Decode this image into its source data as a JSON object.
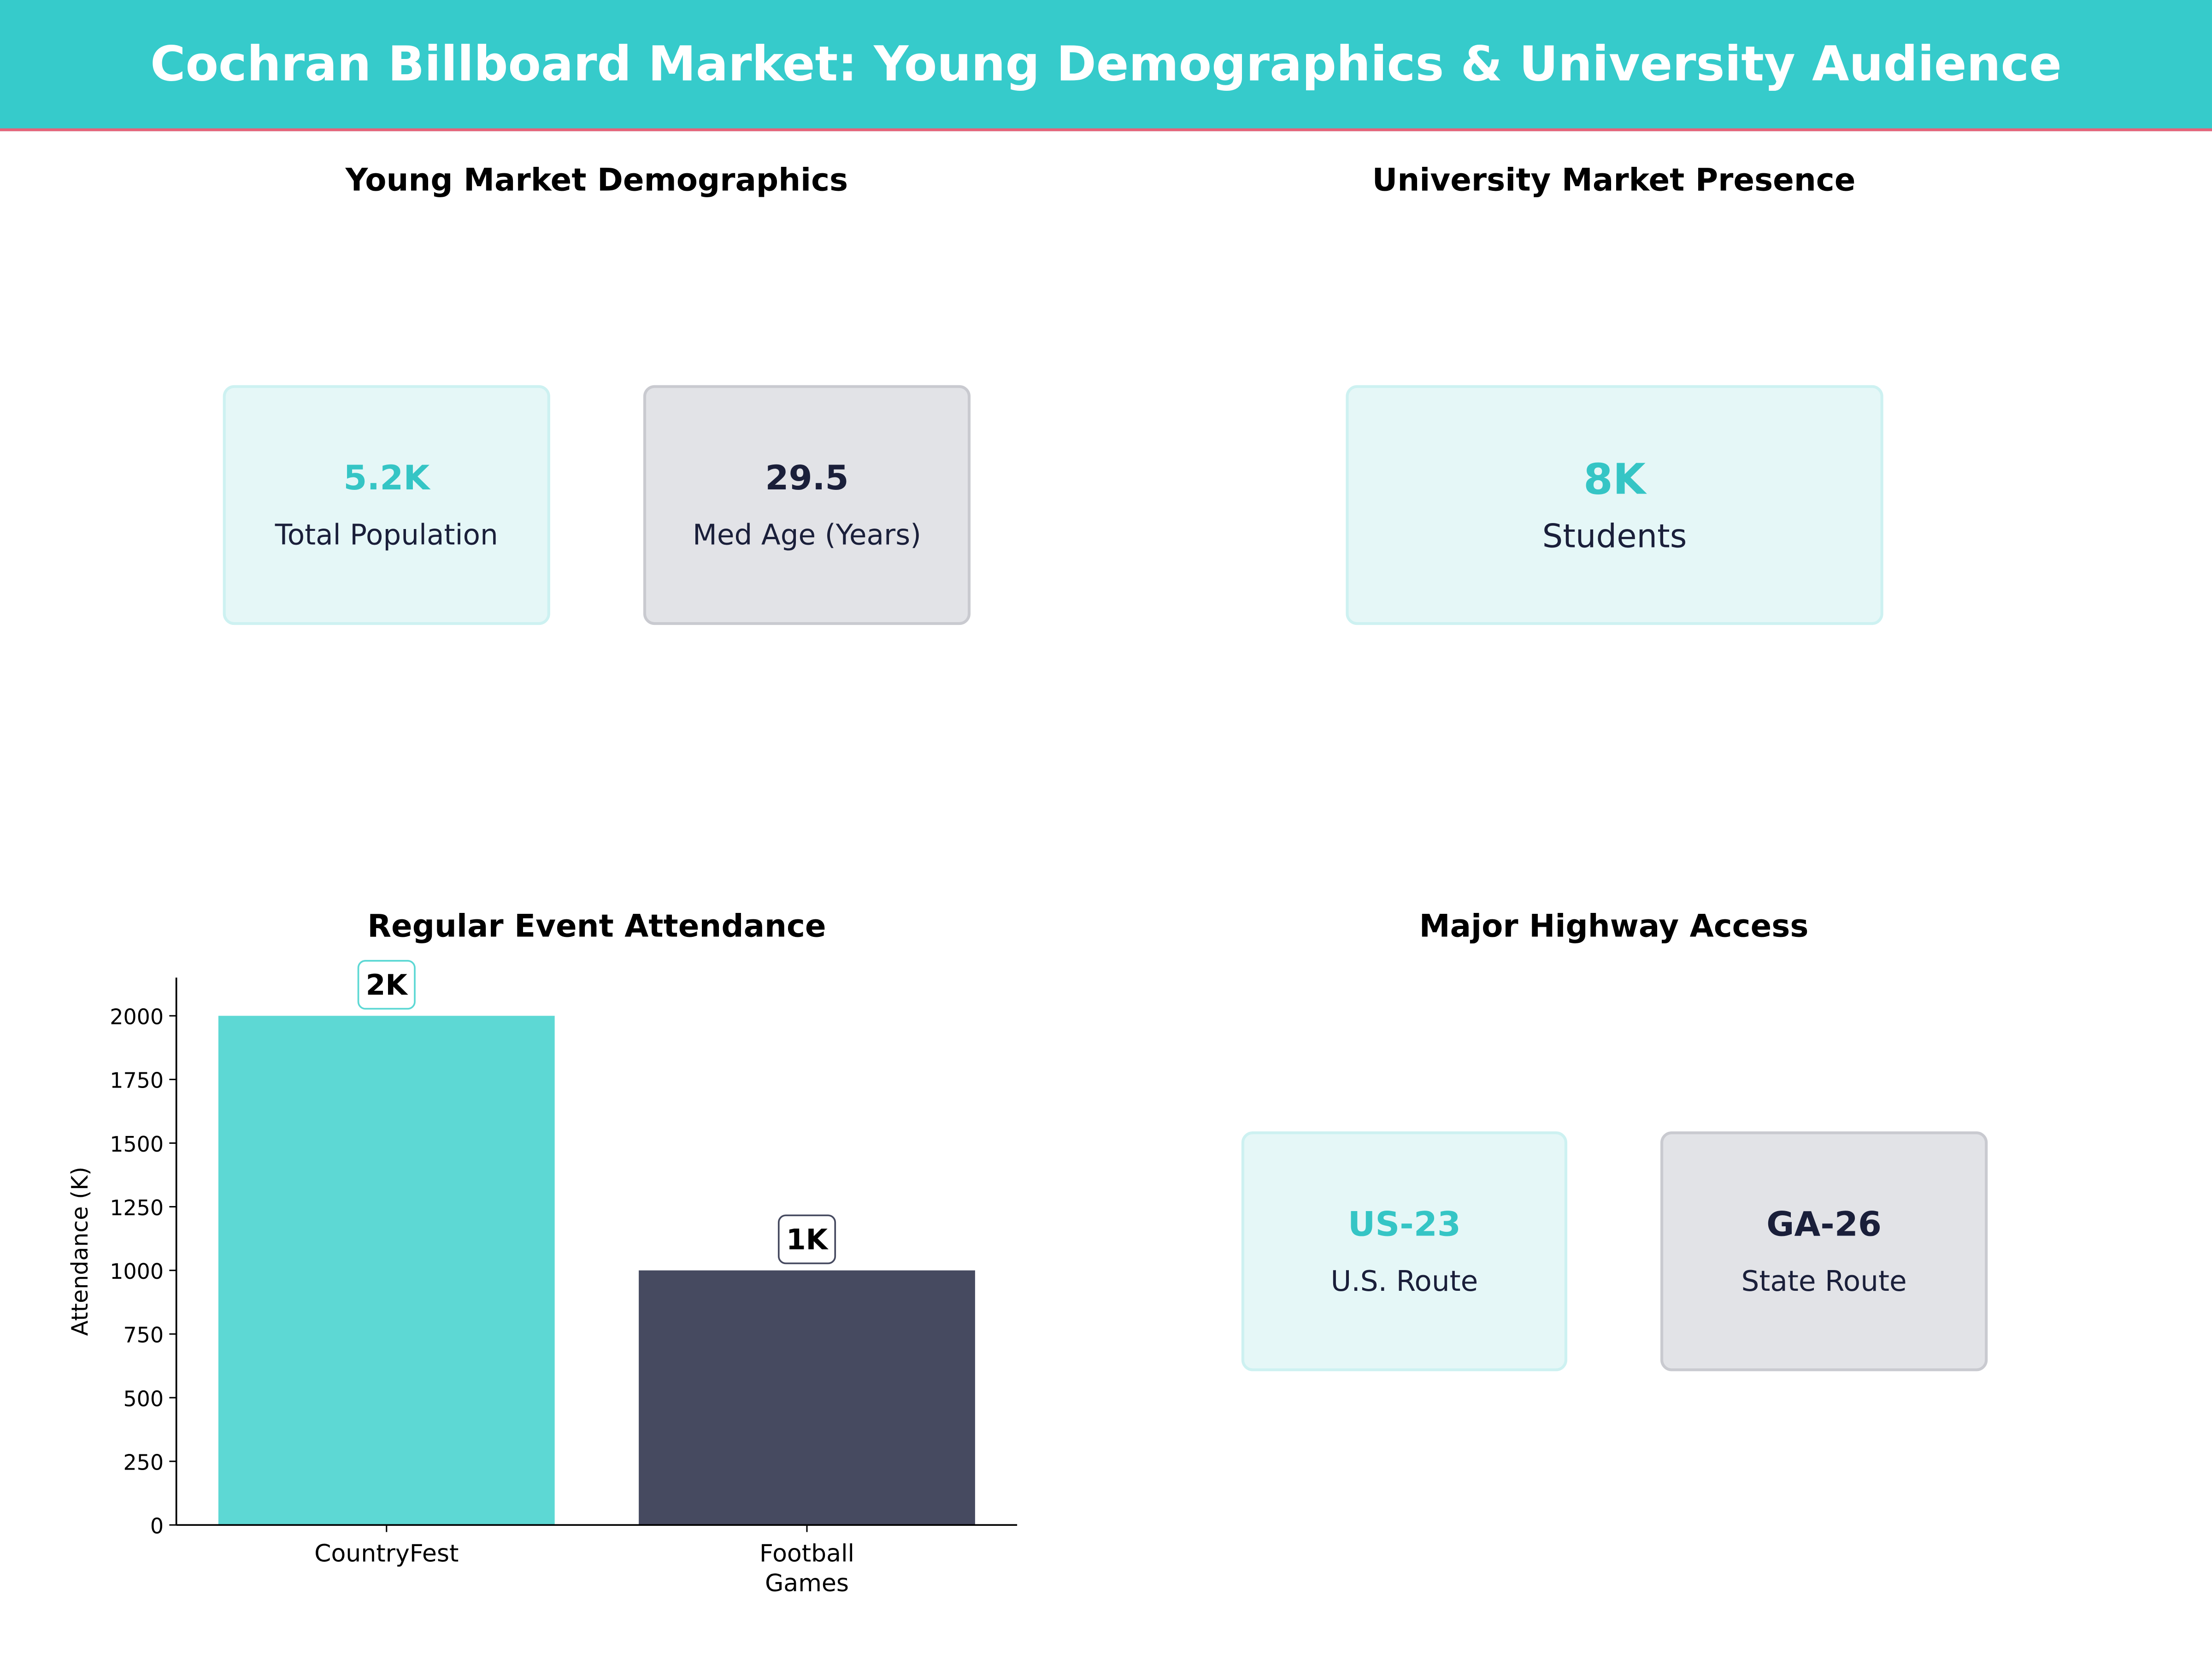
{
  "header": {
    "title": "Cochran Billboard Market: Young Demographics & University Audience"
  },
  "panels": {
    "demographics": {
      "title": "Young Market Demographics",
      "cards": [
        {
          "value": "5.2K",
          "label": "Total Population"
        },
        {
          "value": "29.5",
          "label": "Med Age (Years)"
        }
      ]
    },
    "university": {
      "title": "University Market Presence",
      "cards": [
        {
          "value": "8K",
          "label": "Students"
        }
      ]
    },
    "highway": {
      "title": "Major Highway Access",
      "cards": [
        {
          "value": "US-23",
          "label": "U.S. Route"
        },
        {
          "value": "GA-26",
          "label": "State Route"
        }
      ]
    }
  },
  "colors": {
    "accent": "#36cbcb",
    "dark": "#1a1f3a",
    "header_rule": "#e8637a"
  },
  "chart_data": {
    "type": "bar",
    "title": "Regular Event Attendance",
    "categories": [
      "CountryFest",
      "Football\nGames"
    ],
    "values": [
      2000,
      1000
    ],
    "data_labels": [
      "2K",
      "1K"
    ],
    "colors": [
      "#5dd8d4",
      "#464a60"
    ],
    "xlabel": "",
    "ylabel": "Attendance (K)",
    "ylim": [
      0,
      2150
    ],
    "yticks": [
      0,
      250,
      500,
      750,
      1000,
      1250,
      1500,
      1750,
      2000
    ],
    "grid": false
  }
}
